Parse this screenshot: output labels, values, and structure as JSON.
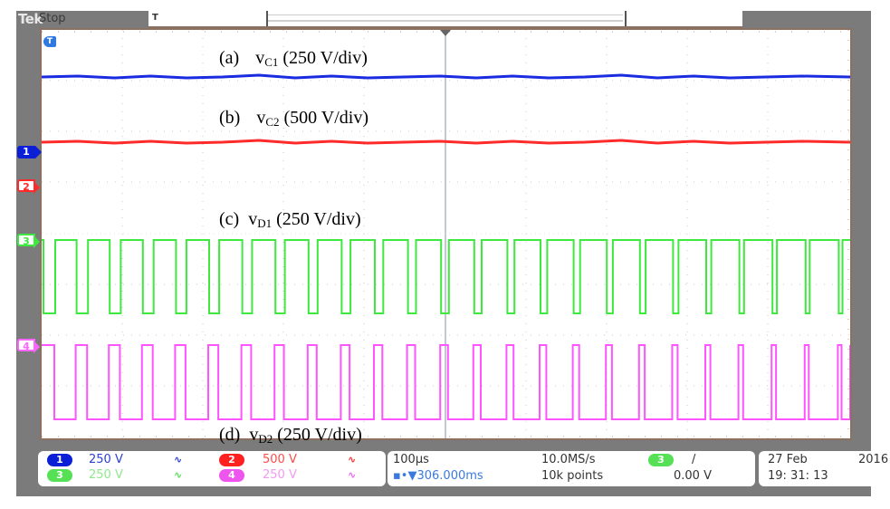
{
  "header": {
    "brand": "Tek",
    "acquisition_state": "Stop",
    "record_marker": "T"
  },
  "plot": {
    "trigger_marker": "T",
    "channel_markers": [
      {
        "id": "1",
        "color": "#0b1fd6"
      },
      {
        "id": "2",
        "color": "#ff2a2a"
      },
      {
        "id": "3",
        "color": "#3ee83e"
      },
      {
        "id": "4",
        "color": "#ff66ff"
      }
    ],
    "annotations": [
      {
        "tag": "(a)",
        "signal": "v",
        "sub": "C1",
        "scale": "(250 V/div)"
      },
      {
        "tag": "(b)",
        "signal": "v",
        "sub": "C2",
        "scale": "(500 V/div)"
      },
      {
        "tag": "(c)",
        "signal": "v",
        "sub": "D1",
        "scale": "(250 V/div)"
      },
      {
        "tag": "(d)",
        "signal": "v",
        "sub": "D2",
        "scale": "(250 V/div)"
      }
    ]
  },
  "channels_panel": {
    "ch1": {
      "num": "1",
      "scale": "250 V",
      "bw": "∿",
      "color": "#2c3fd6"
    },
    "ch2": {
      "num": "2",
      "scale": "500 V",
      "bw": "∿",
      "color": "#ff3030"
    },
    "ch3": {
      "num": "3",
      "scale": "250 V",
      "bw": "∿",
      "color": "#56e056"
    },
    "ch4": {
      "num": "4",
      "scale": "250 V",
      "bw": "∿",
      "color": "#ee66ee"
    }
  },
  "timebase_panel": {
    "time_div": "100µs",
    "sample_rate": "10.0MS/s",
    "trigger_position": "▪•▼306.000ms",
    "record_length": "10k points",
    "trigger_source": "3",
    "trigger_slope": "/",
    "trigger_level": "0.00 V"
  },
  "date_panel": {
    "date": "27 Feb",
    "year": "2016",
    "time": "19: 31: 13"
  },
  "colors": {
    "frame": "#7b7b7b",
    "ch1": "#1a2be0",
    "ch2": "#ff2a2a",
    "ch3": "#3ee83e",
    "ch4": "#ff55ff"
  }
}
